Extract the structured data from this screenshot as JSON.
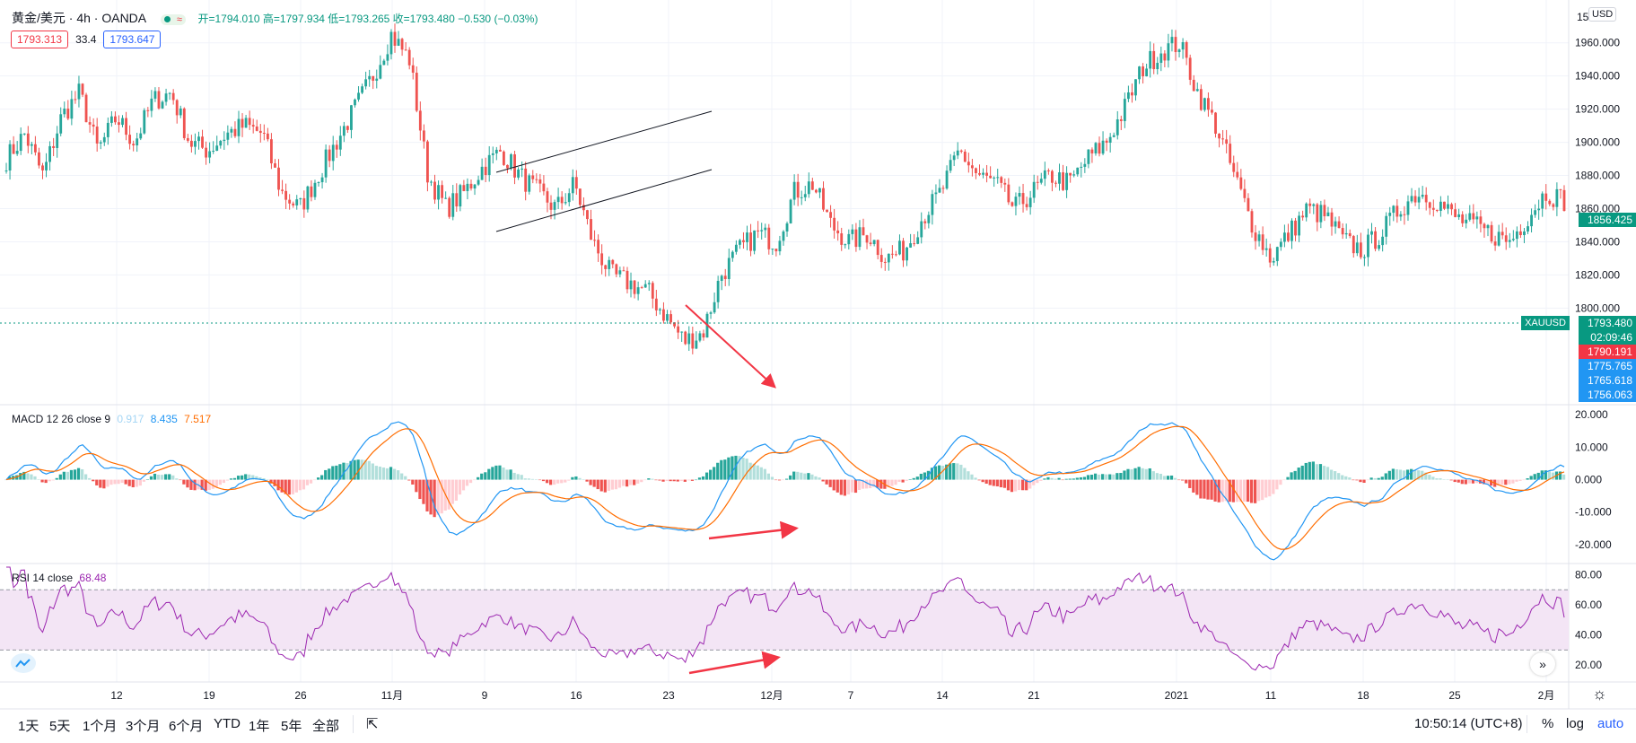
{
  "header": {
    "symbol_title": "黄金/美元 · 4h · OANDA",
    "ohlc": "开=1794.010 高=1797.934 低=1793.265 收=1793.480 −0.530 (−0.03%)",
    "sell_price": "1793.313",
    "spread": "33.4",
    "buy_price": "1793.647",
    "currency_label": "USD"
  },
  "price_axis": {
    "ticks": [
      "1960.000",
      "1940.000",
      "1920.000",
      "1900.000",
      "1880.000",
      "1860.000",
      "1840.000",
      "1820.000",
      "1800.000"
    ],
    "top_label": "15",
    "current_price_label": "1856.425",
    "symbol_tag": "XAUUSD",
    "last_price": "1793.480",
    "countdown": "02:09:46",
    "red_level": "1790.191",
    "blue_levels": [
      "1775.765",
      "1765.618",
      "1756.063"
    ]
  },
  "macd": {
    "legend": "MACD 12 26 close 9",
    "values": [
      "0.917",
      "8.435",
      "7.517"
    ],
    "ticks": [
      "20.000",
      "10.000",
      "0.000",
      "-10.000",
      "-20.000"
    ]
  },
  "rsi": {
    "legend": "RSI 14 close",
    "value": "68.48",
    "ticks": [
      "80.00",
      "60.00",
      "40.00",
      "20.00"
    ]
  },
  "time_axis": {
    "labels": [
      "12",
      "19",
      "26",
      "11月",
      "9",
      "16",
      "23",
      "12月",
      "7",
      "14",
      "21",
      "2021",
      "11",
      "18",
      "25",
      "2月"
    ]
  },
  "toolbar": {
    "timeframes": [
      "1天",
      "5天",
      "1个月",
      "3个月",
      "6个月",
      "YTD",
      "1年",
      "5年",
      "全部"
    ],
    "clock": "10:50:14 (UTC+8)",
    "percent": "%",
    "log": "log",
    "auto": "auto"
  },
  "colors": {
    "up": "#26a69a",
    "down": "#ef5350",
    "macd_line": "#2196f3",
    "signal_line": "#ff6d00",
    "rsi_line": "#9c27b0",
    "rsi_band": "#f3e5f5",
    "annotation_arrow": "#f23645",
    "price_tag": "#089981",
    "blue_tag": "#2196f3"
  },
  "chart_data": {
    "type": "candlestick",
    "symbol": "XAUUSD",
    "timeframe": "4h",
    "price_path": [
      1890,
      1905,
      1880,
      1915,
      1930,
      1895,
      1915,
      1900,
      1925,
      1930,
      1900,
      1895,
      1905,
      1910,
      1905,
      1870,
      1860,
      1880,
      1900,
      1920,
      1940,
      1965,
      1950,
      1880,
      1860,
      1870,
      1885,
      1895,
      1880,
      1870,
      1860,
      1875,
      1840,
      1820,
      1815,
      1810,
      1795,
      1780,
      1785,
      1820,
      1835,
      1845,
      1840,
      1870,
      1875,
      1850,
      1840,
      1845,
      1830,
      1835,
      1855,
      1870,
      1895,
      1880,
      1875,
      1860,
      1870,
      1880,
      1875,
      1890,
      1900,
      1920,
      1945,
      1955,
      1960,
      1930,
      1910,
      1880,
      1850,
      1830,
      1845,
      1860,
      1855,
      1840,
      1835,
      1845,
      1860,
      1870,
      1865,
      1855,
      1850,
      1845,
      1840,
      1855,
      1870,
      1865
    ],
    "price_range": [
      1745,
      1975
    ],
    "macd_range": [
      -25,
      22
    ],
    "rsi_range": [
      10,
      85
    ],
    "rsi_band": [
      30,
      70
    ]
  }
}
